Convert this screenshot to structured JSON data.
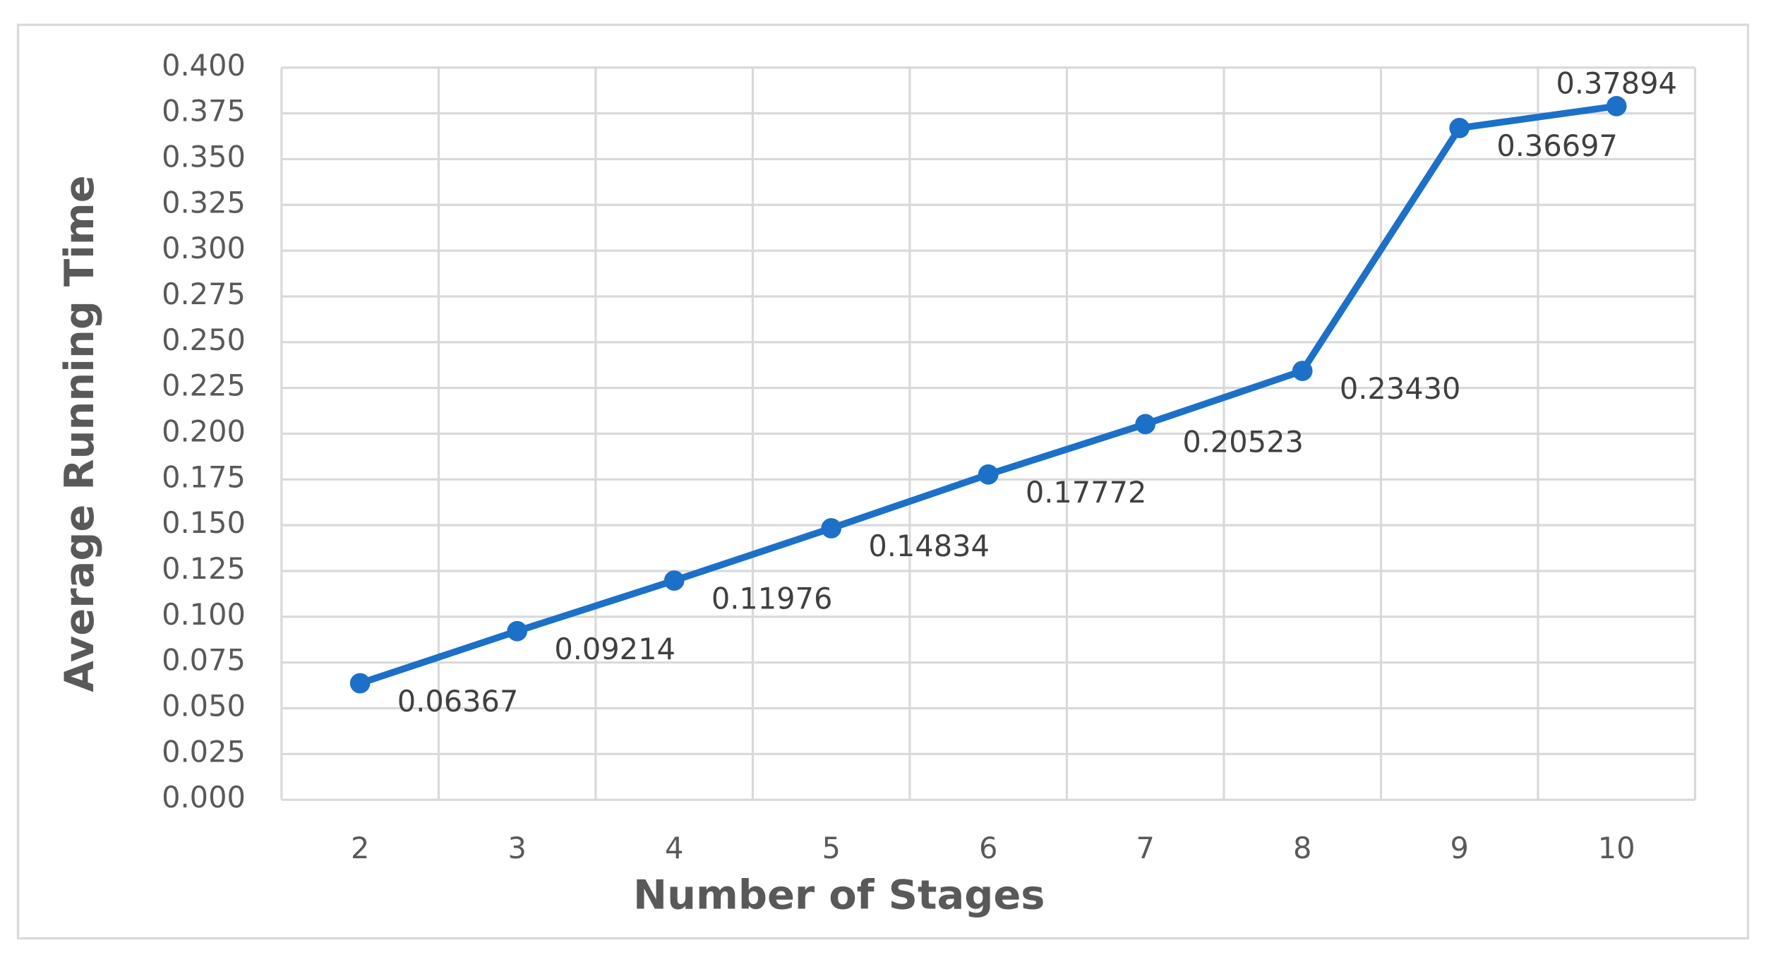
{
  "chart_data": {
    "type": "line",
    "x_label": "Number of Stages",
    "y_label": "Average Running Time",
    "categories": [
      "2",
      "3",
      "4",
      "5",
      "6",
      "7",
      "8",
      "9",
      "10"
    ],
    "series": [
      {
        "name": "Average Running Time",
        "color": "#1c70c8",
        "values": [
          0.06367,
          0.09214,
          0.11976,
          0.14834,
          0.17772,
          0.20523,
          0.2343,
          0.36697,
          0.37894
        ],
        "value_labels": [
          "0.06367",
          "0.09214",
          "0.11976",
          "0.14834",
          "0.17772",
          "0.20523",
          "0.23430",
          "0.36697",
          "0.37894"
        ]
      }
    ],
    "ylim": [
      0,
      0.4
    ],
    "yticks": [
      {
        "value": 0,
        "label": "0.000"
      },
      {
        "value": 0.025,
        "label": "0.025"
      },
      {
        "value": 0.05,
        "label": "0.050"
      },
      {
        "value": 0.075,
        "label": "0.075"
      },
      {
        "value": 0.1,
        "label": "0.100"
      },
      {
        "value": 0.125,
        "label": "0.125"
      },
      {
        "value": 0.15,
        "label": "0.150"
      },
      {
        "value": 0.175,
        "label": "0.175"
      },
      {
        "value": 0.2,
        "label": "0.200"
      },
      {
        "value": 0.225,
        "label": "0.225"
      },
      {
        "value": 0.25,
        "label": "0.250"
      },
      {
        "value": 0.275,
        "label": "0.275"
      },
      {
        "value": 0.3,
        "label": "0.300"
      },
      {
        "value": 0.325,
        "label": "0.325"
      },
      {
        "value": 0.35,
        "label": "0.350"
      },
      {
        "value": 0.375,
        "label": "0.375"
      },
      {
        "value": 0.4,
        "label": "0.400"
      }
    ],
    "grid": true
  }
}
